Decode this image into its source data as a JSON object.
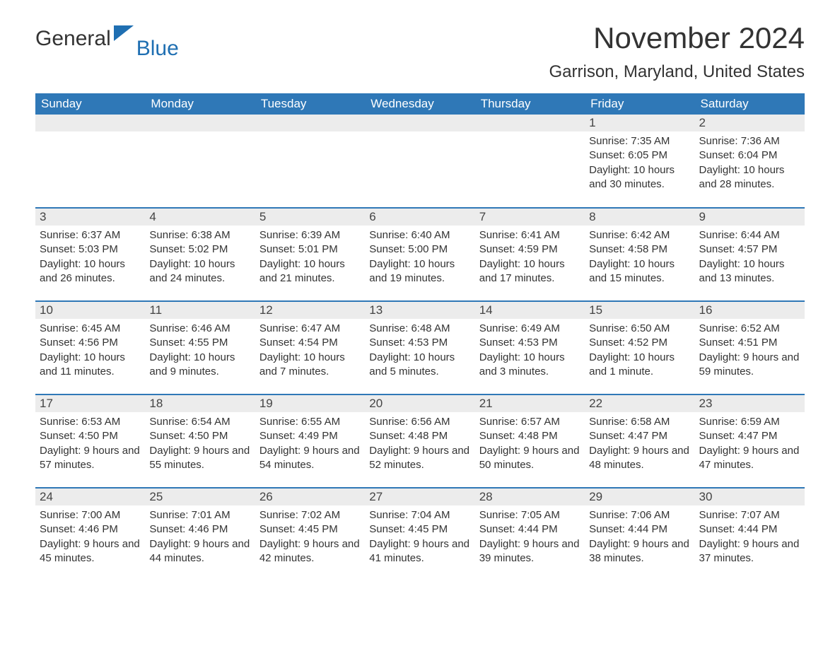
{
  "logo": {
    "text_general": "General",
    "text_blue": "Blue",
    "accent_color": "#1f6fb2"
  },
  "title": "November 2024",
  "location": "Garrison, Maryland, United States",
  "colors": {
    "header_bg": "#2f78b7",
    "header_text": "#ffffff",
    "daynum_bg": "#ececec",
    "row_border": "#2f78b7",
    "body_text": "#333333",
    "page_bg": "#ffffff"
  },
  "fonts": {
    "title_size": 42,
    "location_size": 24,
    "header_size": 17,
    "daynum_size": 17,
    "body_size": 15
  },
  "columns": [
    "Sunday",
    "Monday",
    "Tuesday",
    "Wednesday",
    "Thursday",
    "Friday",
    "Saturday"
  ],
  "weeks": [
    [
      null,
      null,
      null,
      null,
      null,
      {
        "n": "1",
        "sunrise": "Sunrise: 7:35 AM",
        "sunset": "Sunset: 6:05 PM",
        "daylight": "Daylight: 10 hours and 30 minutes."
      },
      {
        "n": "2",
        "sunrise": "Sunrise: 7:36 AM",
        "sunset": "Sunset: 6:04 PM",
        "daylight": "Daylight: 10 hours and 28 minutes."
      }
    ],
    [
      {
        "n": "3",
        "sunrise": "Sunrise: 6:37 AM",
        "sunset": "Sunset: 5:03 PM",
        "daylight": "Daylight: 10 hours and 26 minutes."
      },
      {
        "n": "4",
        "sunrise": "Sunrise: 6:38 AM",
        "sunset": "Sunset: 5:02 PM",
        "daylight": "Daylight: 10 hours and 24 minutes."
      },
      {
        "n": "5",
        "sunrise": "Sunrise: 6:39 AM",
        "sunset": "Sunset: 5:01 PM",
        "daylight": "Daylight: 10 hours and 21 minutes."
      },
      {
        "n": "6",
        "sunrise": "Sunrise: 6:40 AM",
        "sunset": "Sunset: 5:00 PM",
        "daylight": "Daylight: 10 hours and 19 minutes."
      },
      {
        "n": "7",
        "sunrise": "Sunrise: 6:41 AM",
        "sunset": "Sunset: 4:59 PM",
        "daylight": "Daylight: 10 hours and 17 minutes."
      },
      {
        "n": "8",
        "sunrise": "Sunrise: 6:42 AM",
        "sunset": "Sunset: 4:58 PM",
        "daylight": "Daylight: 10 hours and 15 minutes."
      },
      {
        "n": "9",
        "sunrise": "Sunrise: 6:44 AM",
        "sunset": "Sunset: 4:57 PM",
        "daylight": "Daylight: 10 hours and 13 minutes."
      }
    ],
    [
      {
        "n": "10",
        "sunrise": "Sunrise: 6:45 AM",
        "sunset": "Sunset: 4:56 PM",
        "daylight": "Daylight: 10 hours and 11 minutes."
      },
      {
        "n": "11",
        "sunrise": "Sunrise: 6:46 AM",
        "sunset": "Sunset: 4:55 PM",
        "daylight": "Daylight: 10 hours and 9 minutes."
      },
      {
        "n": "12",
        "sunrise": "Sunrise: 6:47 AM",
        "sunset": "Sunset: 4:54 PM",
        "daylight": "Daylight: 10 hours and 7 minutes."
      },
      {
        "n": "13",
        "sunrise": "Sunrise: 6:48 AM",
        "sunset": "Sunset: 4:53 PM",
        "daylight": "Daylight: 10 hours and 5 minutes."
      },
      {
        "n": "14",
        "sunrise": "Sunrise: 6:49 AM",
        "sunset": "Sunset: 4:53 PM",
        "daylight": "Daylight: 10 hours and 3 minutes."
      },
      {
        "n": "15",
        "sunrise": "Sunrise: 6:50 AM",
        "sunset": "Sunset: 4:52 PM",
        "daylight": "Daylight: 10 hours and 1 minute."
      },
      {
        "n": "16",
        "sunrise": "Sunrise: 6:52 AM",
        "sunset": "Sunset: 4:51 PM",
        "daylight": "Daylight: 9 hours and 59 minutes."
      }
    ],
    [
      {
        "n": "17",
        "sunrise": "Sunrise: 6:53 AM",
        "sunset": "Sunset: 4:50 PM",
        "daylight": "Daylight: 9 hours and 57 minutes."
      },
      {
        "n": "18",
        "sunrise": "Sunrise: 6:54 AM",
        "sunset": "Sunset: 4:50 PM",
        "daylight": "Daylight: 9 hours and 55 minutes."
      },
      {
        "n": "19",
        "sunrise": "Sunrise: 6:55 AM",
        "sunset": "Sunset: 4:49 PM",
        "daylight": "Daylight: 9 hours and 54 minutes."
      },
      {
        "n": "20",
        "sunrise": "Sunrise: 6:56 AM",
        "sunset": "Sunset: 4:48 PM",
        "daylight": "Daylight: 9 hours and 52 minutes."
      },
      {
        "n": "21",
        "sunrise": "Sunrise: 6:57 AM",
        "sunset": "Sunset: 4:48 PM",
        "daylight": "Daylight: 9 hours and 50 minutes."
      },
      {
        "n": "22",
        "sunrise": "Sunrise: 6:58 AM",
        "sunset": "Sunset: 4:47 PM",
        "daylight": "Daylight: 9 hours and 48 minutes."
      },
      {
        "n": "23",
        "sunrise": "Sunrise: 6:59 AM",
        "sunset": "Sunset: 4:47 PM",
        "daylight": "Daylight: 9 hours and 47 minutes."
      }
    ],
    [
      {
        "n": "24",
        "sunrise": "Sunrise: 7:00 AM",
        "sunset": "Sunset: 4:46 PM",
        "daylight": "Daylight: 9 hours and 45 minutes."
      },
      {
        "n": "25",
        "sunrise": "Sunrise: 7:01 AM",
        "sunset": "Sunset: 4:46 PM",
        "daylight": "Daylight: 9 hours and 44 minutes."
      },
      {
        "n": "26",
        "sunrise": "Sunrise: 7:02 AM",
        "sunset": "Sunset: 4:45 PM",
        "daylight": "Daylight: 9 hours and 42 minutes."
      },
      {
        "n": "27",
        "sunrise": "Sunrise: 7:04 AM",
        "sunset": "Sunset: 4:45 PM",
        "daylight": "Daylight: 9 hours and 41 minutes."
      },
      {
        "n": "28",
        "sunrise": "Sunrise: 7:05 AM",
        "sunset": "Sunset: 4:44 PM",
        "daylight": "Daylight: 9 hours and 39 minutes."
      },
      {
        "n": "29",
        "sunrise": "Sunrise: 7:06 AM",
        "sunset": "Sunset: 4:44 PM",
        "daylight": "Daylight: 9 hours and 38 minutes."
      },
      {
        "n": "30",
        "sunrise": "Sunrise: 7:07 AM",
        "sunset": "Sunset: 4:44 PM",
        "daylight": "Daylight: 9 hours and 37 minutes."
      }
    ]
  ]
}
